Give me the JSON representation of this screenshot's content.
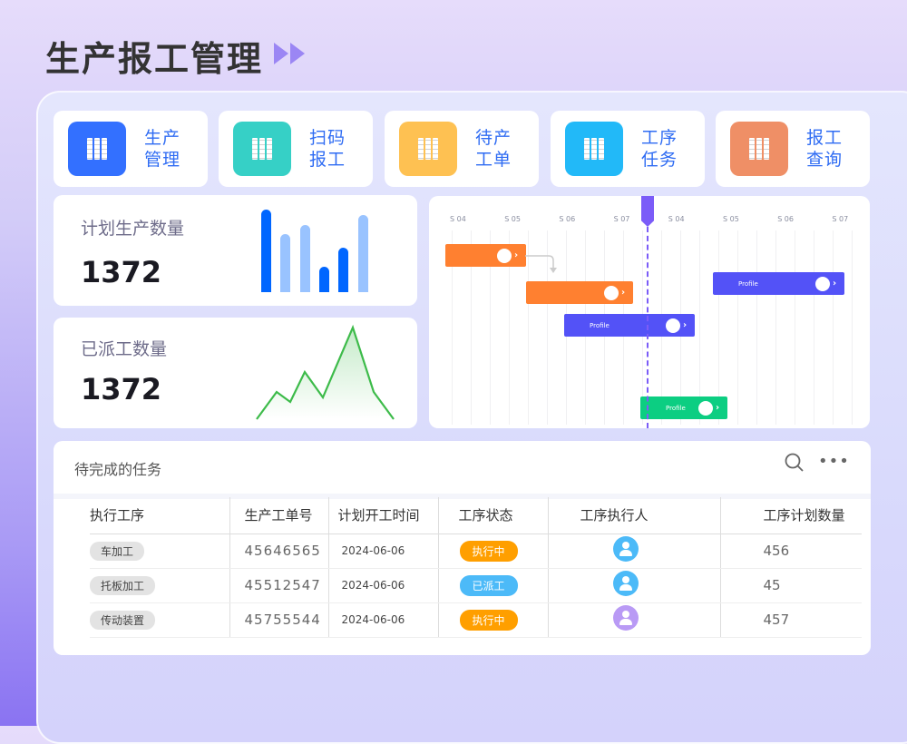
{
  "page_title": "生产报工管理",
  "nav": [
    {
      "label": "生产管理",
      "line1": "生产",
      "line2": "管理",
      "color": "#3370ff",
      "icon": "books-icon"
    },
    {
      "label": "扫码报工",
      "line1": "扫码",
      "line2": "报工",
      "color": "#36d0c6",
      "icon": "books-icon"
    },
    {
      "label": "待产工单",
      "line1": "待产",
      "line2": "工单",
      "color": "#fec152",
      "icon": "books-icon"
    },
    {
      "label": "工序任务",
      "line1": "工序",
      "line2": "任务",
      "color": "#22b9f8",
      "icon": "books-icon"
    },
    {
      "label": "报工查询",
      "line1": "报工",
      "line2": "查询",
      "color": "#ef8f66",
      "icon": "books-icon"
    }
  ],
  "stats": {
    "planned": {
      "label": "计划生产数量",
      "value": "1372"
    },
    "dispatched": {
      "label": "已派工数量",
      "value": "1372"
    }
  },
  "chart_data": [
    {
      "type": "bar",
      "values": [
        91,
        64,
        74,
        28,
        49,
        85
      ],
      "colors": [
        "#0066ff",
        "#99c3ff",
        "#99c3ff",
        "#0066ff",
        "#0066ff",
        "#99c3ff"
      ]
    },
    {
      "type": "area",
      "values": [
        0,
        30,
        19,
        52,
        24,
        101,
        30,
        0
      ],
      "color": "#3dbb4a"
    }
  ],
  "gantt": {
    "columns": [
      "S 04",
      "S 05",
      "S 06",
      "S 07",
      "S 04",
      "S 05",
      "S 06",
      "S 07"
    ],
    "bars": [
      {
        "label": "",
        "color": "#ff8030"
      },
      {
        "label": "",
        "color": "#ff8030"
      },
      {
        "label": "Profile",
        "color": "#5352f7"
      },
      {
        "label": "Profile",
        "color": "#5352f7"
      },
      {
        "label": "Profile",
        "color": "#0cce82"
      }
    ],
    "today_color": "#7b5cf8"
  },
  "tasks": {
    "title": "待完成的任务",
    "columns": [
      "执行工序",
      "生产工单号",
      "计划开工时间",
      "工序状态",
      "工序执行人",
      "工序计划数量"
    ],
    "rows": [
      {
        "process": "车加工",
        "order": "45646565",
        "date": "2024-06-06",
        "status": "执行中",
        "status_color": "#ff9f00",
        "avatar_color": "#4cbaf8",
        "qty": "456"
      },
      {
        "process": "托板加工",
        "order": "45512547",
        "date": "2024-06-06",
        "status": "已派工",
        "status_color": "#4cbaf8",
        "avatar_color": "#4cbaf8",
        "qty": "45"
      },
      {
        "process": "传动装置",
        "order": "45755544",
        "date": "2024-06-06",
        "status": "执行中",
        "status_color": "#ff9f00",
        "avatar_color": "#b99af5",
        "qty": "457"
      }
    ]
  }
}
